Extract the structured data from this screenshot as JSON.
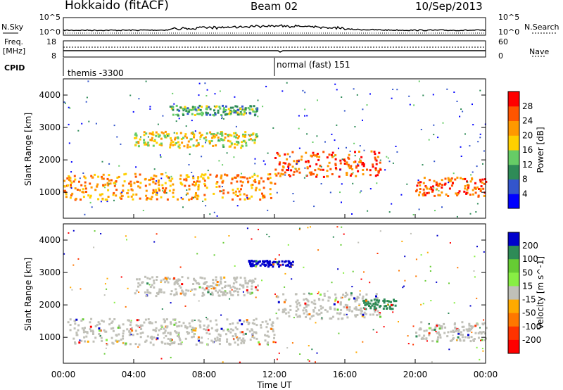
{
  "header": {
    "station": "Hokkaido (fitACF)",
    "beam": "Beam 02",
    "date": "10/Sep/2013"
  },
  "noise_panel": {
    "left_label": "N.Sky",
    "right_label": "N.Search",
    "left_ticks": [
      "10^5",
      "10^0"
    ],
    "right_ticks": [
      "10^5",
      "10^0"
    ]
  },
  "freq_panel": {
    "left_label_1": "Freq.",
    "left_label_2": "[MHz]",
    "right_label": "Nave",
    "left_ticks": [
      "18",
      "8"
    ],
    "right_ticks": [
      "60",
      "0"
    ]
  },
  "cpid_panel": {
    "label": "CPID",
    "entries": [
      {
        "text": "themis -3300"
      },
      {
        "text": "normal (fast) 151"
      }
    ]
  },
  "chart_data": [
    {
      "type": "heatmap",
      "name": "power",
      "ylabel": "Slant Range [km]",
      "xlabel": "Time UT",
      "x_ticks": [
        "00:00",
        "04:00",
        "08:00",
        "12:00",
        "16:00",
        "20:00",
        "00:00"
      ],
      "x_range_hours": [
        0,
        24
      ],
      "y_ticks": [
        1000,
        2000,
        3000,
        4000
      ],
      "ylim": [
        200,
        4500
      ],
      "colorbar": {
        "label": "Power [dB]",
        "ticks": [
          4,
          8,
          12,
          16,
          20,
          24,
          28
        ],
        "range": [
          0,
          32
        ],
        "colors": [
          "#0000ff",
          "#3355cc",
          "#2e8b57",
          "#66cc66",
          "#ffd000",
          "#ff9900",
          "#ff5500",
          "#ff0000"
        ]
      },
      "features": [
        {
          "t0": 0,
          "t1": 12,
          "r0": 800,
          "r1": 1600,
          "level": 22
        },
        {
          "t0": 4,
          "t1": 11,
          "r0": 2400,
          "r1": 2900,
          "level": 18
        },
        {
          "t0": 6,
          "t1": 11,
          "r0": 3400,
          "r1": 3700,
          "level": 12
        },
        {
          "t0": 12,
          "t1": 18,
          "r0": 1500,
          "r1": 2300,
          "level": 26
        },
        {
          "t0": 20,
          "t1": 24,
          "r0": 900,
          "r1": 1500,
          "level": 26
        }
      ]
    },
    {
      "type": "heatmap",
      "name": "velocity",
      "ylabel": "Slant Range [km]",
      "xlabel": "Time UT",
      "x_ticks": [
        "00:00",
        "04:00",
        "08:00",
        "12:00",
        "16:00",
        "20:00",
        "00:00"
      ],
      "x_range_hours": [
        0,
        24
      ],
      "y_ticks": [
        1000,
        2000,
        3000,
        4000
      ],
      "ylim": [
        200,
        4500
      ],
      "colorbar": {
        "label": "Velocity [m s^-1]",
        "ticks": [
          200,
          100,
          50,
          15,
          -15,
          -50,
          -100,
          -200
        ],
        "colors": [
          "#0000cc",
          "#2e8b57",
          "#66cc33",
          "#88ee44",
          "#c0c0b8",
          "#ffaa00",
          "#ff7700",
          "#ff3300",
          "#ff0000"
        ]
      }
    }
  ]
}
